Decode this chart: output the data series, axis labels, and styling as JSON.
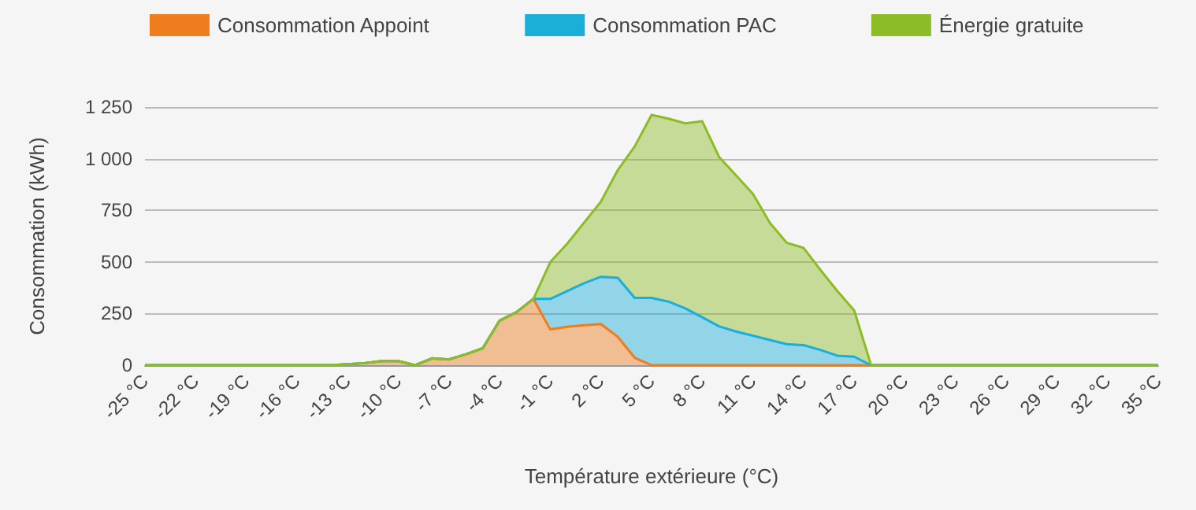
{
  "chart_data": {
    "type": "area",
    "stacked": true,
    "xlabel": "Température extérieure (°C)",
    "ylabel": "Consommation (kWh)",
    "categories": [
      "-25 °C",
      null,
      null,
      "-22 °C",
      null,
      null,
      "-19 °C",
      null,
      null,
      "-16 °C",
      null,
      null,
      "-13 °C",
      null,
      null,
      "-10 °C",
      null,
      null,
      "-7 °C",
      null,
      null,
      "-4 °C",
      null,
      null,
      "-1 °C",
      null,
      null,
      "2 °C",
      null,
      null,
      "5 °C",
      null,
      null,
      "8 °C",
      null,
      null,
      "11 °C",
      null,
      null,
      "14 °C",
      null,
      null,
      "17 °C",
      null,
      null,
      "20 °C",
      null,
      null,
      "23 °C",
      null,
      null,
      "26 °C",
      null,
      null,
      "29 °C",
      null,
      null,
      "32 °C",
      null,
      null,
      "35 °C"
    ],
    "series": [
      {
        "name": "Consommation Appoint",
        "color": "#ee7d1e",
        "values": [
          0,
          0,
          0,
          0,
          0,
          0,
          0,
          0,
          0,
          0,
          0,
          0,
          5,
          10,
          20,
          20,
          0,
          33,
          28,
          53,
          82,
          216,
          257,
          321,
          173,
          186,
          193,
          199,
          137,
          36,
          0,
          0,
          0,
          0,
          0,
          0,
          0,
          0,
          0,
          0,
          0,
          0,
          0,
          0,
          0,
          0,
          0,
          0,
          0,
          0,
          0,
          0,
          0,
          0,
          0,
          0,
          0,
          0,
          0,
          0,
          0
        ]
      },
      {
        "name": "Consommation PAC",
        "color": "#1aaed9",
        "values": [
          0,
          0,
          0,
          0,
          0,
          0,
          0,
          0,
          0,
          0,
          0,
          0,
          0,
          0,
          0,
          0,
          0,
          0,
          0,
          0,
          0,
          0,
          0,
          0,
          148,
          173,
          204,
          229,
          286,
          290,
          326,
          308,
          275,
          232,
          188,
          163,
          143,
          122,
          102,
          97,
          74,
          46,
          41,
          0,
          0,
          0,
          0,
          0,
          0,
          0,
          0,
          0,
          0,
          0,
          0,
          0,
          0,
          0,
          0,
          0,
          0
        ]
      },
      {
        "name": "Énergie gratuite",
        "color": "#8cbc26",
        "values": [
          0,
          0,
          0,
          0,
          0,
          0,
          0,
          0,
          0,
          0,
          0,
          0,
          0,
          0,
          0,
          0,
          0,
          0,
          0,
          0,
          0,
          0,
          0,
          0,
          178,
          229,
          293,
          364,
          522,
          733,
          886,
          886,
          896,
          949,
          820,
          756,
          687,
          568,
          491,
          471,
          387,
          313,
          224,
          0,
          0,
          0,
          0,
          0,
          0,
          0,
          0,
          0,
          0,
          0,
          0,
          0,
          0,
          0,
          0,
          0,
          0
        ]
      }
    ],
    "ylim": [
      0,
      1250
    ],
    "yticks": [
      0,
      250,
      500,
      750,
      {
        "value": 1000,
        "label": "1 000"
      },
      {
        "value": 1250,
        "label": "1 250"
      }
    ],
    "grid": "y",
    "legend": "top",
    "marker": "none"
  }
}
